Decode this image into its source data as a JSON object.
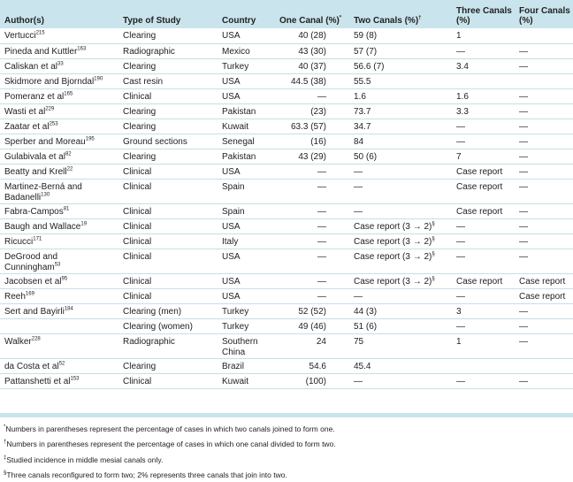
{
  "headers": {
    "author": "Author(s)",
    "type": "Type of Study",
    "country": "Country",
    "one": "One Canal (%)",
    "one_mark": "*",
    "two": "Two Canals (%)",
    "two_mark": "†",
    "three": "Three Canals (%)",
    "four": "Four Canals (%)"
  },
  "rows": [
    {
      "author": "Vertucci",
      "ref": "215",
      "type": "Clearing",
      "country": "USA",
      "one": "40 (28)",
      "two": "59 (8)",
      "two_mark": "",
      "three": "1",
      "four": ""
    },
    {
      "author": "Pineda and Kuttler",
      "ref": "163",
      "type": "Radiographic",
      "country": "Mexico",
      "one": "43 (30)",
      "two": "57 (7)",
      "two_mark": "",
      "three": "—",
      "four": "—"
    },
    {
      "author": "Caliskan et al",
      "ref": "33",
      "type": "Clearing",
      "country": "Turkey",
      "one": "40 (37)",
      "two": "56.6 (7)",
      "two_mark": "",
      "three": "3.4",
      "four": "—"
    },
    {
      "author": "Skidmore and Bjorndal",
      "ref": "190",
      "type": "Cast resin",
      "country": "USA",
      "one": "44.5 (38)",
      "two": "55.5",
      "two_mark": "",
      "three": "",
      "four": ""
    },
    {
      "author": "Pomeranz et al",
      "ref": "165",
      "type": "Clinical",
      "country": "USA",
      "one": "—",
      "two": "1.6",
      "two_mark": "",
      "three": "1.6",
      "four": "—"
    },
    {
      "author": "Wasti et al",
      "ref": "229",
      "type": "Clearing",
      "country": "Pakistan",
      "one": "(23)",
      "two": "73.7",
      "two_mark": "",
      "three": "3.3",
      "four": "—"
    },
    {
      "author": "Zaatar et al",
      "ref": "253",
      "type": "Clearing",
      "country": "Kuwait",
      "one": "63.3 (57)",
      "two": "34.7",
      "two_mark": "",
      "three": "—",
      "four": "—"
    },
    {
      "author": "Sperber and Moreau",
      "ref": "195",
      "type": "Ground sections",
      "country": "Senegal",
      "one": "(16)",
      "two": "84",
      "two_mark": "",
      "three": "—",
      "four": "—"
    },
    {
      "author": "Gulabivala et al",
      "ref": "82",
      "type": "Clearing",
      "country": "Pakistan",
      "one": "43 (29)",
      "two": "50 (6)",
      "two_mark": "",
      "three": "7",
      "four": "—"
    },
    {
      "author": "Beatty and Krell",
      "ref": "22",
      "type": "Clinical",
      "country": "USA",
      "one": "—",
      "two": "—",
      "two_mark": "",
      "three": "Case report",
      "four": "—"
    },
    {
      "author": "Martinez-Berná and Badanelli",
      "ref": "130",
      "type": "Clinical",
      "country": "Spain",
      "one": "—",
      "two": "—",
      "two_mark": "",
      "three": "Case report",
      "four": "—"
    },
    {
      "author": "Fabra-Campos",
      "ref": "81",
      "type": "Clinical",
      "country": "Spain",
      "one": "—",
      "two": "—",
      "two_mark": "",
      "three": "Case report",
      "four": "—"
    },
    {
      "author": "Baugh and Wallace",
      "ref": "19",
      "type": "Clinical",
      "country": "USA",
      "one": "—",
      "two": "Case report (3 → 2)",
      "two_mark": "§",
      "three": "—",
      "four": "—"
    },
    {
      "author": "Ricucci",
      "ref": "171",
      "type": "Clinical",
      "country": "Italy",
      "one": "—",
      "two": "Case report (3 → 2)",
      "two_mark": "§",
      "three": "—",
      "four": "—"
    },
    {
      "author": "DeGrood and Cunningham",
      "ref": "53",
      "type": "Clinical",
      "country": "USA",
      "one": "—",
      "two": "Case report (3 → 2)",
      "two_mark": "§",
      "three": "—",
      "four": "—"
    },
    {
      "author": "Jacobsen et al",
      "ref": "95",
      "type": "Clinical",
      "country": "USA",
      "one": "—",
      "two": "Case report (3 → 2)",
      "two_mark": "§",
      "three": "Case report",
      "four": "Case report"
    },
    {
      "author": "Reeh",
      "ref": "169",
      "type": "Clinical",
      "country": "USA",
      "one": "—",
      "two": "—",
      "two_mark": "",
      "three": "—",
      "four": "Case report"
    },
    {
      "author": "Sert and Bayirli",
      "ref": "184",
      "type": "Clearing (men)",
      "country": "Turkey",
      "one": "52 (52)",
      "two": "44 (3)",
      "two_mark": "",
      "three": "3",
      "four": "—"
    },
    {
      "author": "",
      "ref": "",
      "type": "Clearing (women)",
      "country": "Turkey",
      "one": "49 (46)",
      "two": "51 (6)",
      "two_mark": "",
      "three": "—",
      "four": "—"
    },
    {
      "author": "Walker",
      "ref": "228",
      "type": "Radiographic",
      "country": "Southern China",
      "one": "24",
      "two": "75",
      "two_mark": "",
      "three": "1",
      "four": "—"
    },
    {
      "author": "da Costa et al",
      "ref": "52",
      "type": "Clearing",
      "country": "Brazil",
      "one": "54.6",
      "two": "45.4",
      "two_mark": "",
      "three": "",
      "four": ""
    },
    {
      "author": "Pattanshetti et al",
      "ref": "153",
      "type": "Clinical",
      "country": "Kuwait",
      "one": "(100)",
      "two": "—",
      "two_mark": "",
      "three": "—",
      "four": "—"
    }
  ],
  "footnotes": [
    {
      "mark": "*",
      "text": "Numbers in parentheses represent the percentage of cases in which two canals joined to form one."
    },
    {
      "mark": "†",
      "text": "Numbers in parentheses represent the percentage of cases in which one canal divided to form two."
    },
    {
      "mark": "‡",
      "text": "Studied incidence in middle mesial canals only."
    },
    {
      "mark": "§",
      "text": "Three canals reconfigured to form two; 2% represents three canals that join into two."
    }
  ]
}
